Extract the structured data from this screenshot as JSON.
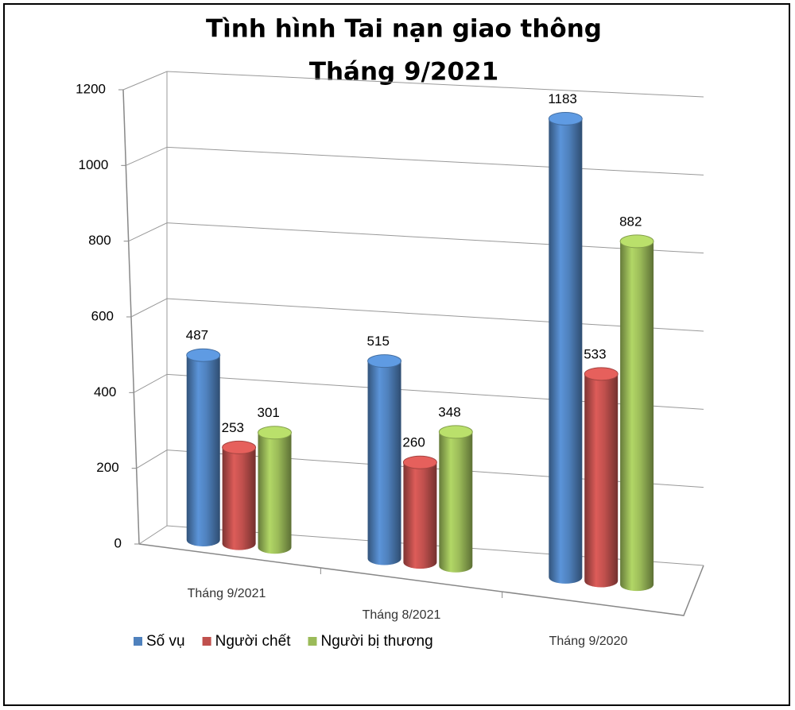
{
  "chart_data": {
    "type": "bar3d-cylinder",
    "title": [
      "Tình hình Tai nạn giao thông",
      "Tháng 9/2021"
    ],
    "categories": [
      "Tháng 9/2021",
      "Tháng 8/2021",
      "Tháng 9/2020"
    ],
    "series": [
      {
        "name": "Số vụ",
        "color": "#4f81bd",
        "values": [
          487,
          515,
          1183
        ]
      },
      {
        "name": "Người chết",
        "color": "#c0504d",
        "values": [
          253,
          260,
          533
        ]
      },
      {
        "name": "Người bị thương",
        "color": "#9bbb59",
        "values": [
          301,
          348,
          882
        ]
      }
    ],
    "ylim": [
      0,
      1200
    ],
    "yticks": [
      0,
      200,
      400,
      600,
      800,
      1000,
      1200
    ],
    "grid": true,
    "legend": "bottom"
  }
}
